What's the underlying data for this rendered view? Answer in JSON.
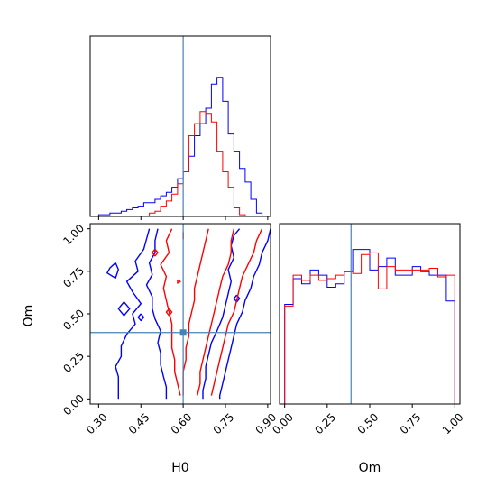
{
  "chart_data": {
    "type": "corner",
    "parameters": [
      "H0",
      "Om"
    ],
    "truth": {
      "H0": 0.6,
      "Om": 0.39
    },
    "truth_color": "#4682b4",
    "series": [
      {
        "color": "#0000ff"
      },
      {
        "color": "#ff0000"
      }
    ],
    "panels": [
      {
        "id": "hist-H0",
        "type": "step-histogram",
        "parameter": "H0",
        "xlim": [
          0.27,
          0.91
        ],
        "ylim": [
          0,
          1.05
        ],
        "ticks_shown": false,
        "bin_edges": [
          0.3,
          0.32,
          0.34,
          0.36,
          0.38,
          0.4,
          0.42,
          0.44,
          0.46,
          0.48,
          0.5,
          0.52,
          0.54,
          0.56,
          0.58,
          0.6,
          0.62,
          0.64,
          0.66,
          0.68,
          0.7,
          0.72,
          0.74,
          0.76,
          0.78,
          0.8,
          0.82,
          0.84,
          0.86,
          0.88,
          0.9
        ],
        "series_values": [
          [
            0.01,
            0.01,
            0.02,
            0.02,
            0.03,
            0.04,
            0.05,
            0.06,
            0.08,
            0.08,
            0.1,
            0.12,
            0.14,
            0.17,
            0.22,
            0.26,
            0.35,
            0.47,
            0.54,
            0.63,
            0.77,
            0.81,
            0.67,
            0.48,
            0.38,
            0.28,
            0.2,
            0.1,
            0.02,
            0.0
          ],
          [
            0.0,
            0.0,
            0.0,
            0.0,
            0.0,
            0.0,
            0.0,
            0.0,
            0.0,
            0.02,
            0.03,
            0.06,
            0.09,
            0.13,
            0.19,
            0.26,
            0.47,
            0.54,
            0.61,
            0.6,
            0.55,
            0.38,
            0.26,
            0.17,
            0.05,
            0.01,
            0.0,
            0.0,
            0.0,
            0.0
          ]
        ]
      },
      {
        "id": "hist-Om",
        "type": "step-histogram",
        "parameter": "Om",
        "xlim": [
          -0.03,
          1.03
        ],
        "ylim": [
          0,
          1.05
        ],
        "xticks": [
          "0.00",
          "0.25",
          "0.50",
          "0.75",
          "1.00"
        ],
        "xlabel": "Om",
        "bin_edges": [
          0.0,
          0.05,
          0.1,
          0.15,
          0.2,
          0.25,
          0.3,
          0.35,
          0.4,
          0.45,
          0.5,
          0.55,
          0.6,
          0.65,
          0.7,
          0.75,
          0.8,
          0.85,
          0.9,
          0.95,
          1.0
        ],
        "series_values": [
          [
            0.58,
            0.73,
            0.7,
            0.78,
            0.75,
            0.68,
            0.7,
            0.77,
            0.9,
            0.9,
            0.78,
            0.8,
            0.85,
            0.75,
            0.75,
            0.8,
            0.77,
            0.75,
            0.75,
            0.6
          ],
          [
            0.57,
            0.75,
            0.72,
            0.75,
            0.72,
            0.73,
            0.75,
            0.77,
            0.76,
            0.87,
            0.88,
            0.67,
            0.8,
            0.78,
            0.78,
            0.78,
            0.78,
            0.79,
            0.74,
            0.75
          ]
        ]
      },
      {
        "id": "contour-H0-Om",
        "type": "2d-contour",
        "x_parameter": "H0",
        "y_parameter": "Om",
        "xlim": [
          0.27,
          0.91
        ],
        "ylim": [
          -0.03,
          1.03
        ],
        "xticks": [
          "0.30",
          "0.45",
          "0.60",
          "0.75",
          "0.90"
        ],
        "yticks": [
          "0.00",
          "0.25",
          "0.50",
          "0.75",
          "1.00"
        ],
        "xlabel": "H0",
        "ylabel": "Om",
        "contours": [
          {
            "series": 0,
            "points": [
              [
                0.48,
                1.0
              ],
              [
                0.47,
                0.94
              ],
              [
                0.46,
                0.88
              ],
              [
                0.43,
                0.81
              ],
              [
                0.44,
                0.75
              ],
              [
                0.4,
                0.69
              ],
              [
                0.42,
                0.63
              ],
              [
                0.45,
                0.56
              ],
              [
                0.42,
                0.5
              ],
              [
                0.43,
                0.44
              ],
              [
                0.4,
                0.38
              ],
              [
                0.38,
                0.31
              ],
              [
                0.38,
                0.25
              ],
              [
                0.36,
                0.19
              ],
              [
                0.37,
                0.13
              ],
              [
                0.37,
                0.06
              ],
              [
                0.37,
                0.0
              ]
            ]
          },
          {
            "series": 0,
            "points": [
              [
                0.51,
                1.0
              ],
              [
                0.5,
                0.93
              ],
              [
                0.5,
                0.86
              ],
              [
                0.48,
                0.8
              ],
              [
                0.49,
                0.73
              ],
              [
                0.47,
                0.67
              ],
              [
                0.49,
                0.6
              ],
              [
                0.49,
                0.53
              ],
              [
                0.5,
                0.47
              ],
              [
                0.52,
                0.4
              ],
              [
                0.51,
                0.33
              ],
              [
                0.52,
                0.27
              ],
              [
                0.52,
                0.2
              ],
              [
                0.53,
                0.13
              ],
              [
                0.54,
                0.07
              ],
              [
                0.54,
                0.0
              ]
            ]
          },
          {
            "series": 0,
            "points": [
              [
                0.8,
                1.0
              ],
              [
                0.78,
                0.96
              ],
              [
                0.77,
                0.9
              ],
              [
                0.78,
                0.83
              ],
              [
                0.76,
                0.76
              ],
              [
                0.77,
                0.69
              ],
              [
                0.76,
                0.62
              ],
              [
                0.75,
                0.55
              ],
              [
                0.74,
                0.48
              ],
              [
                0.72,
                0.4
              ],
              [
                0.7,
                0.33
              ],
              [
                0.69,
                0.26
              ],
              [
                0.68,
                0.19
              ],
              [
                0.68,
                0.12
              ],
              [
                0.67,
                0.05
              ],
              [
                0.67,
                0.0
              ]
            ]
          },
          {
            "series": 0,
            "points": [
              [
                0.91,
                1.0
              ],
              [
                0.9,
                0.93
              ],
              [
                0.88,
                0.86
              ],
              [
                0.87,
                0.79
              ],
              [
                0.85,
                0.72
              ],
              [
                0.84,
                0.65
              ],
              [
                0.82,
                0.58
              ],
              [
                0.81,
                0.51
              ],
              [
                0.79,
                0.44
              ],
              [
                0.78,
                0.37
              ],
              [
                0.77,
                0.3
              ],
              [
                0.76,
                0.23
              ],
              [
                0.75,
                0.16
              ],
              [
                0.74,
                0.09
              ],
              [
                0.73,
                0.02
              ],
              [
                0.73,
                0.0
              ]
            ]
          },
          {
            "series": 0,
            "points": [
              [
                0.36,
                0.8
              ],
              [
                0.34,
                0.77
              ],
              [
                0.33,
                0.74
              ],
              [
                0.36,
                0.71
              ],
              [
                0.37,
                0.76
              ],
              [
                0.36,
                0.8
              ]
            ]
          },
          {
            "series": 0,
            "points": [
              [
                0.39,
                0.57
              ],
              [
                0.37,
                0.53
              ],
              [
                0.39,
                0.49
              ],
              [
                0.41,
                0.53
              ],
              [
                0.39,
                0.57
              ]
            ]
          },
          {
            "series": 0,
            "points": [
              [
                0.45,
                0.5
              ],
              [
                0.44,
                0.48
              ],
              [
                0.45,
                0.46
              ],
              [
                0.46,
                0.48
              ],
              [
                0.45,
                0.5
              ]
            ]
          },
          {
            "series": 0,
            "points": [
              [
                0.79,
                0.61
              ],
              [
                0.78,
                0.59
              ],
              [
                0.79,
                0.57
              ],
              [
                0.8,
                0.59
              ],
              [
                0.79,
                0.61
              ]
            ]
          },
          {
            "series": 1,
            "points": [
              [
                0.56,
                1.0
              ],
              [
                0.54,
                0.93
              ],
              [
                0.55,
                0.86
              ],
              [
                0.52,
                0.79
              ],
              [
                0.54,
                0.72
              ],
              [
                0.53,
                0.65
              ],
              [
                0.54,
                0.58
              ],
              [
                0.55,
                0.51
              ],
              [
                0.56,
                0.44
              ],
              [
                0.56,
                0.37
              ],
              [
                0.56,
                0.3
              ],
              [
                0.57,
                0.23
              ],
              [
                0.57,
                0.16
              ],
              [
                0.58,
                0.09
              ],
              [
                0.59,
                0.02
              ]
            ]
          },
          {
            "series": 1,
            "points": [
              [
                0.69,
                1.0
              ],
              [
                0.68,
                0.93
              ],
              [
                0.67,
                0.86
              ],
              [
                0.66,
                0.79
              ],
              [
                0.65,
                0.72
              ],
              [
                0.64,
                0.65
              ],
              [
                0.64,
                0.58
              ],
              [
                0.63,
                0.51
              ],
              [
                0.62,
                0.44
              ],
              [
                0.62,
                0.37
              ],
              [
                0.61,
                0.3
              ],
              [
                0.61,
                0.23
              ],
              [
                0.6,
                0.16
              ],
              [
                0.6,
                0.09
              ],
              [
                0.6,
                0.02
              ]
            ]
          },
          {
            "series": 1,
            "points": [
              [
                0.78,
                1.0
              ],
              [
                0.77,
                0.93
              ],
              [
                0.77,
                0.86
              ],
              [
                0.76,
                0.79
              ],
              [
                0.74,
                0.72
              ],
              [
                0.73,
                0.65
              ],
              [
                0.72,
                0.58
              ],
              [
                0.71,
                0.51
              ],
              [
                0.7,
                0.44
              ],
              [
                0.69,
                0.37
              ],
              [
                0.68,
                0.3
              ],
              [
                0.67,
                0.23
              ],
              [
                0.66,
                0.16
              ],
              [
                0.66,
                0.09
              ],
              [
                0.65,
                0.02
              ]
            ]
          },
          {
            "series": 1,
            "points": [
              [
                0.88,
                1.0
              ],
              [
                0.86,
                0.93
              ],
              [
                0.85,
                0.86
              ],
              [
                0.83,
                0.79
              ],
              [
                0.81,
                0.72
              ],
              [
                0.8,
                0.65
              ],
              [
                0.79,
                0.58
              ],
              [
                0.78,
                0.51
              ],
              [
                0.76,
                0.44
              ],
              [
                0.75,
                0.37
              ],
              [
                0.74,
                0.3
              ],
              [
                0.73,
                0.23
              ],
              [
                0.72,
                0.16
              ],
              [
                0.71,
                0.09
              ],
              [
                0.7,
                0.02
              ]
            ]
          },
          {
            "series": 1,
            "points": [
              [
                0.6,
                0.98
              ],
              [
                0.6,
                0.94
              ],
              [
                0.6,
                0.98
              ]
            ]
          },
          {
            "series": 1,
            "points": [
              [
                0.58,
                0.7
              ],
              [
                0.58,
                0.68
              ],
              [
                0.59,
                0.69
              ],
              [
                0.58,
                0.7
              ]
            ]
          },
          {
            "series": 1,
            "points": [
              [
                0.55,
                0.53
              ],
              [
                0.54,
                0.51
              ],
              [
                0.55,
                0.49
              ],
              [
                0.56,
                0.51
              ],
              [
                0.55,
                0.53
              ]
            ]
          },
          {
            "series": 1,
            "points": [
              [
                0.5,
                0.88
              ],
              [
                0.49,
                0.86
              ],
              [
                0.5,
                0.84
              ],
              [
                0.51,
                0.86
              ],
              [
                0.5,
                0.88
              ]
            ]
          }
        ]
      }
    ]
  }
}
